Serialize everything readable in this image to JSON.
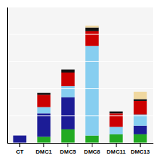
{
  "chart_data": {
    "type": "bar",
    "stacked": true,
    "categories": [
      "CT",
      "DMC1",
      "DMC5",
      "DMC8",
      "DMC11",
      "DMC13"
    ],
    "series": [
      {
        "color": "#22aa22",
        "values": [
          0,
          10,
          22,
          12,
          14,
          14
        ]
      },
      {
        "color": "#1c1c96",
        "values": [
          12,
          38,
          52,
          0,
          0,
          14
        ]
      },
      {
        "color": "#87cef0",
        "values": [
          0,
          10,
          18,
          145,
          12,
          18
        ]
      },
      {
        "color": "#cc0000",
        "values": [
          0,
          20,
          22,
          24,
          22,
          22
        ]
      },
      {
        "color": "#111111",
        "values": [
          0,
          3,
          5,
          6,
          3,
          3
        ]
      },
      {
        "color": "#f0d8a0",
        "values": [
          0,
          0,
          0,
          3,
          0,
          12
        ]
      }
    ],
    "ylim": [
      0,
      220
    ],
    "yticks": [
      0,
      44,
      88,
      132,
      176,
      220
    ],
    "grid": true,
    "tick_labels": "x"
  }
}
